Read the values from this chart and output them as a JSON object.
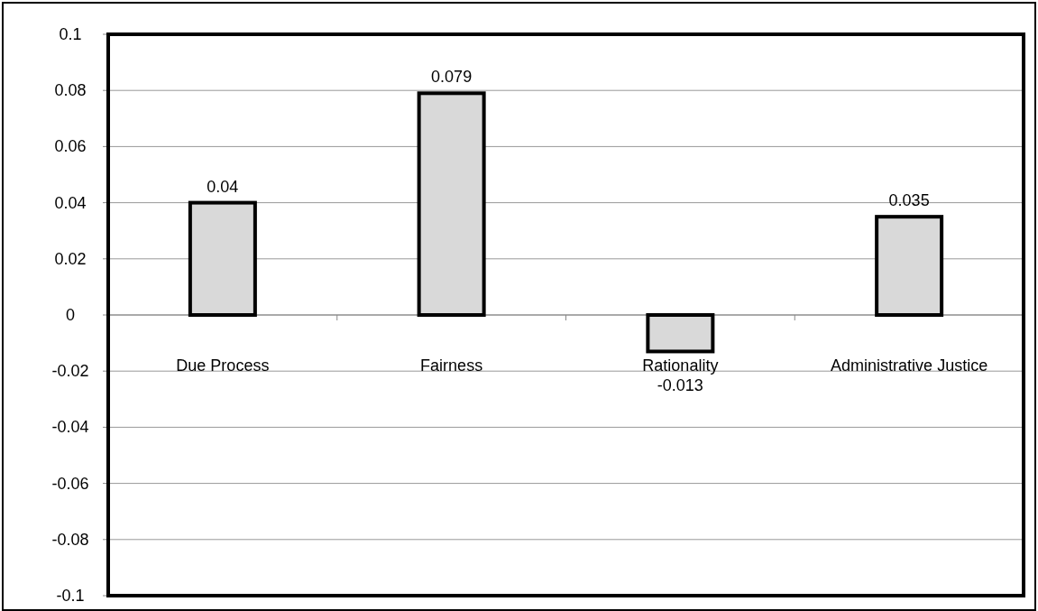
{
  "chart_data": {
    "type": "bar",
    "categories": [
      "Due Process",
      "Fairness",
      "Rationality",
      "Administrative Justice"
    ],
    "values": [
      0.04,
      0.079,
      -0.013,
      0.035
    ],
    "color": "#d9d9d9",
    "ylim": [
      -0.1,
      0.1
    ],
    "yticks": [
      -0.1,
      -0.08,
      -0.06,
      -0.04,
      -0.02,
      0,
      0.02,
      0.04,
      0.06,
      0.08,
      0.1
    ],
    "grid": "y",
    "data_labels": true
  }
}
